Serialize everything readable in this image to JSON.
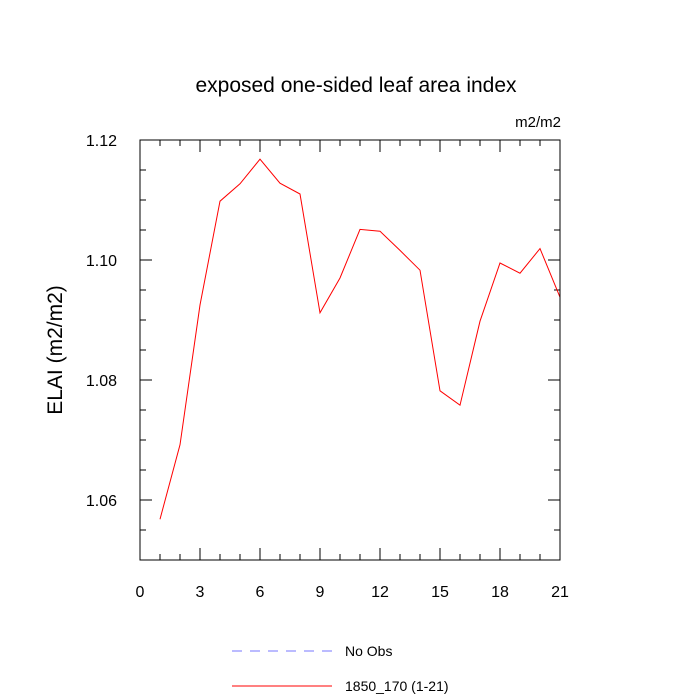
{
  "chart_data": {
    "type": "line",
    "title": "exposed one-sided leaf area index",
    "units": "m2/m2",
    "ylabel": "ELAI  (m2/m2)",
    "xlabel": "",
    "xlim": [
      0,
      21
    ],
    "ylim": [
      1.05,
      1.12
    ],
    "xticks": [
      0,
      3,
      6,
      9,
      12,
      15,
      18,
      21
    ],
    "xtick_labels": [
      "0",
      "3",
      "6",
      "9",
      "12",
      "15",
      "18",
      "21"
    ],
    "yticks": [
      1.06,
      1.08,
      1.1,
      1.12
    ],
    "ytick_labels": [
      "1.06",
      "1.08",
      "1.10",
      "1.12"
    ],
    "grid": false,
    "legend_position": "bottom",
    "series": [
      {
        "name": "No Obs",
        "color": "#7777ff",
        "style": "dashed",
        "x": [],
        "y": []
      },
      {
        "name": "1850_170 (1-21)",
        "color": "#ff0000",
        "style": "solid",
        "x": [
          1,
          2,
          3,
          4,
          5,
          6,
          7,
          8,
          9,
          10,
          11,
          12,
          13,
          14,
          15,
          16,
          17,
          18,
          19,
          20,
          21
        ],
        "y": [
          1.0568,
          1.0692,
          1.0925,
          1.1098,
          1.1127,
          1.1168,
          1.1128,
          1.111,
          1.0912,
          1.097,
          1.1051,
          1.1048,
          1.1016,
          1.0983,
          1.0782,
          1.0758,
          1.0898,
          1.0995,
          1.0978,
          1.1019,
          1.0938
        ]
      }
    ]
  }
}
